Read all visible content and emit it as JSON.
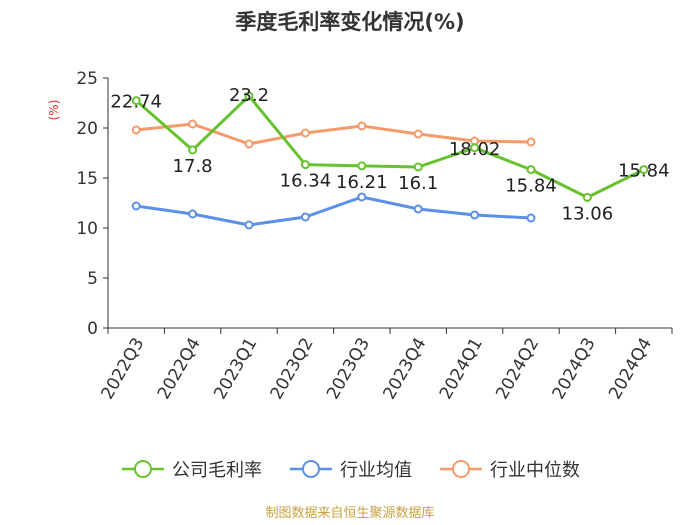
{
  "chart_data": {
    "type": "line",
    "title": "季度毛利率变化情况(%)",
    "ylabel": "(%)",
    "xlabel": "",
    "ylim": [
      0,
      25
    ],
    "yticks": [
      0,
      5,
      10,
      15,
      20,
      25
    ],
    "categories": [
      "2022Q3",
      "2022Q4",
      "2023Q1",
      "2023Q2",
      "2023Q3",
      "2023Q4",
      "2024Q1",
      "2024Q2",
      "2024Q3",
      "2024Q4"
    ],
    "grid": false,
    "legend_position": "bottom",
    "series": [
      {
        "name": "公司毛利率",
        "color": "#66c22d",
        "values": [
          22.74,
          17.8,
          23.2,
          16.34,
          16.21,
          16.1,
          18.02,
          15.84,
          13.06,
          15.84
        ],
        "labels": [
          "22.74",
          "17.8",
          "23.2",
          "16.34",
          "16.21",
          "16.1",
          "18.02",
          "15.84",
          "13.06",
          "15.84"
        ]
      },
      {
        "name": "行业均值",
        "color": "#5b8fe8",
        "values": [
          12.2,
          11.4,
          10.3,
          11.1,
          13.1,
          11.9,
          11.3,
          11.0,
          null,
          null
        ]
      },
      {
        "name": "行业中位数",
        "color": "#f59a6a",
        "values": [
          19.8,
          20.4,
          18.4,
          19.5,
          20.2,
          19.4,
          18.7,
          18.6,
          null,
          null
        ]
      }
    ]
  },
  "source_note": "制图数据来自恒生聚源数据库"
}
